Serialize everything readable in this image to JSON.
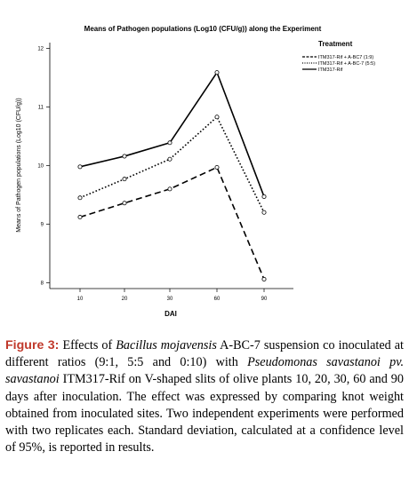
{
  "chart_data": {
    "type": "line",
    "title": "Means of Pathogen populations (Log10 (CFU/g)) along the Experiment",
    "xlabel": "DAI",
    "ylabel": "Means of Pathogen populations (Log10 (CFU/g))",
    "categories": [
      "10",
      "20",
      "30",
      "60",
      "90"
    ],
    "ylim": [
      7.9,
      12.1
    ],
    "yticks": [
      "8",
      "9",
      "10",
      "11",
      "12"
    ],
    "grid": false,
    "legend_title": "Treatment",
    "legend_position": "top-right",
    "series": [
      {
        "name": "ITM317-Rif + A-BC7 (1:9)",
        "style": "dashed",
        "values": [
          9.12,
          9.36,
          9.6,
          9.97,
          8.06
        ]
      },
      {
        "name": "ITM317-Rif + A-BC-7 (5:5)",
        "style": "dotted",
        "values": [
          9.45,
          9.77,
          10.11,
          10.83,
          9.2
        ]
      },
      {
        "name": "ITM317-Rif",
        "style": "solid",
        "values": [
          9.98,
          10.16,
          10.39,
          11.59,
          9.47
        ]
      }
    ]
  },
  "caption": {
    "label": "Figure 3:",
    "t1": " Effects of ",
    "i1": "Bacillus mojavensis",
    "t2": " A-BC-7 suspension co inoculated at different ratios (9:1, 5:5 and 0:10) with ",
    "i2": "Pseudomonas savastanoi pv. savastanoi",
    "t3": " ITM317-Rif on V-shaped slits of olive plants 10, 20, 30, 60 and 90 days after inoculation. The effect was expressed by comparing knot weight obtained from inoculated sites. Two independent experiments were performed with two replicates each. Standard deviation, calculated at a confidence level of 95%, is reported in results."
  }
}
